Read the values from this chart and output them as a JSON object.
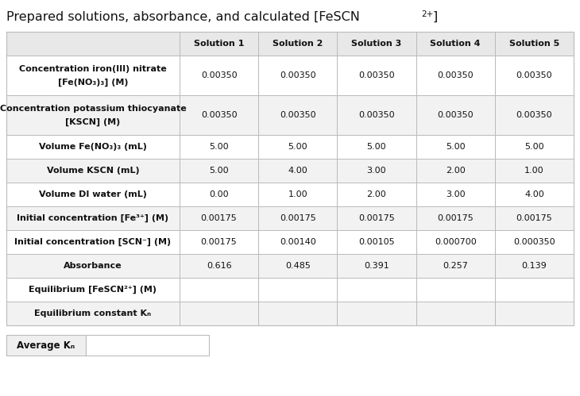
{
  "title": "Prepared solutions, absorbance, and calculated [FeSCN",
  "title_super": "2+",
  "title_end": "]",
  "columns": [
    "",
    "Solution 1",
    "Solution 2",
    "Solution 3",
    "Solution 4",
    "Solution 5"
  ],
  "rows": [
    {
      "label_lines": [
        "Concentration iron(III) nitrate",
        "[Fe(NO₃)₃] (Μ)"
      ],
      "values": [
        "0.00350",
        "0.00350",
        "0.00350",
        "0.00350",
        "0.00350"
      ],
      "bg": "#ffffff",
      "tall": true
    },
    {
      "label_lines": [
        "Concentration potassium thiocyanate",
        "[KSCN] (Μ)"
      ],
      "values": [
        "0.00350",
        "0.00350",
        "0.00350",
        "0.00350",
        "0.00350"
      ],
      "bg": "#f2f2f2",
      "tall": true
    },
    {
      "label_lines": [
        "Volume Fe(NO₃)₃ (mL)"
      ],
      "values": [
        "5.00",
        "5.00",
        "5.00",
        "5.00",
        "5.00"
      ],
      "bg": "#ffffff",
      "tall": false
    },
    {
      "label_lines": [
        "Volume KSCN (mL)"
      ],
      "values": [
        "5.00",
        "4.00",
        "3.00",
        "2.00",
        "1.00"
      ],
      "bg": "#f2f2f2",
      "tall": false
    },
    {
      "label_lines": [
        "Volume DI water (mL)"
      ],
      "values": [
        "0.00",
        "1.00",
        "2.00",
        "3.00",
        "4.00"
      ],
      "bg": "#ffffff",
      "tall": false
    },
    {
      "label_lines": [
        "Initial concentration [Fe³⁺] (Μ)"
      ],
      "values": [
        "0.00175",
        "0.00175",
        "0.00175",
        "0.00175",
        "0.00175"
      ],
      "bg": "#f2f2f2",
      "tall": false
    },
    {
      "label_lines": [
        "Initial concentration [SCN⁻] (Μ)"
      ],
      "values": [
        "0.00175",
        "0.00140",
        "0.00105",
        "0.000700",
        "0.000350"
      ],
      "bg": "#ffffff",
      "tall": false
    },
    {
      "label_lines": [
        "Absorbance"
      ],
      "values": [
        "0.616",
        "0.485",
        "0.391",
        "0.257",
        "0.139"
      ],
      "bg": "#f2f2f2",
      "tall": false
    },
    {
      "label_lines": [
        "Equilibrium [FeSCN²⁺] (Μ)"
      ],
      "values": [
        "",
        "",
        "",
        "",
        ""
      ],
      "bg": "#ffffff",
      "tall": false
    },
    {
      "label_lines": [
        "Equilibrium constant Kₙ"
      ],
      "values": [
        "",
        "",
        "",
        "",
        ""
      ],
      "bg": "#f2f2f2",
      "tall": false
    }
  ],
  "header_bg": "#e8e8e8",
  "border_color": "#bbbbbb",
  "title_color": "#111111",
  "body_text_color": "#111111",
  "avg_kc_label": "Average Kₙ",
  "fig_bg": "#ffffff"
}
